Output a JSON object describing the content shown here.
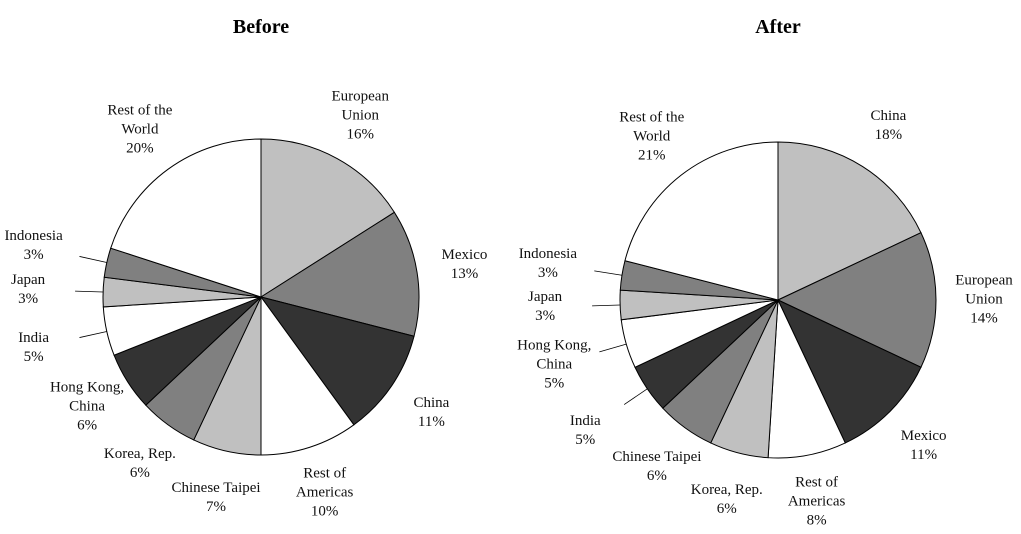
{
  "chart_data": [
    {
      "type": "pie",
      "title": "Before",
      "categories": [
        "European Union",
        "Mexico",
        "China",
        "Rest of Americas",
        "Chinese Taipei",
        "Korea, Rep.",
        "Hong Kong, China",
        "India",
        "Japan",
        "Indonesia",
        "Rest of the World"
      ],
      "values": [
        16,
        13,
        11,
        10,
        7,
        6,
        6,
        5,
        3,
        3,
        20
      ],
      "value_labels": [
        "16%",
        "13%",
        "11%",
        "10%",
        "7%",
        "6%",
        "6%",
        "5%",
        "3%",
        "3%",
        "20%"
      ],
      "colors": [
        "#c0c0c0",
        "#808080",
        "#333333",
        "#ffffff",
        "#c0c0c0",
        "#808080",
        "#333333",
        "#ffffff",
        "#c0c0c0",
        "#808080",
        "#ffffff"
      ]
    },
    {
      "type": "pie",
      "title": "After",
      "categories": [
        "China",
        "European Union",
        "Mexico",
        "Rest of Americas",
        "Korea, Rep.",
        "Chinese Taipei",
        "India",
        "Hong Kong, China",
        "Japan",
        "Indonesia",
        "Rest of the World"
      ],
      "values": [
        18,
        14,
        11,
        8,
        6,
        6,
        5,
        5,
        3,
        3,
        21
      ],
      "value_labels": [
        "18%",
        "14%",
        "11%",
        "8%",
        "6%",
        "6%",
        "5%",
        "5%",
        "3%",
        "3%",
        "21%"
      ],
      "colors": [
        "#c0c0c0",
        "#808080",
        "#333333",
        "#ffffff",
        "#c0c0c0",
        "#808080",
        "#333333",
        "#ffffff",
        "#c0c0c0",
        "#808080",
        "#ffffff"
      ]
    }
  ]
}
